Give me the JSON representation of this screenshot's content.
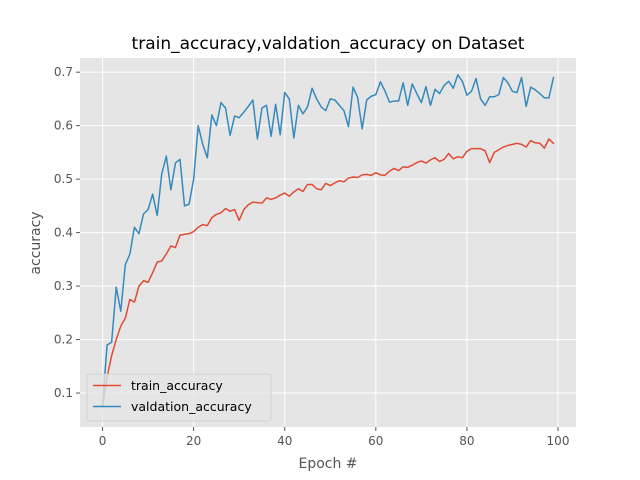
{
  "chart_data": {
    "type": "line",
    "title": "train_accuracy,valdation_accuracy on Dataset",
    "xlabel": "Epoch #",
    "ylabel": "accuracy",
    "xlim": [
      -4.95,
      103.95
    ],
    "ylim": [
      0.0365,
      0.7265
    ],
    "xticks": [
      0,
      20,
      40,
      60,
      80,
      100
    ],
    "yticks": [
      0.1,
      0.2,
      0.3,
      0.4,
      0.5,
      0.6,
      0.7
    ],
    "grid": true,
    "legend": "lower-left",
    "colors": {
      "background": "#e5e5e5",
      "grid": "#ffffff",
      "train": "#e24a33",
      "val": "#348abd"
    },
    "series": [
      {
        "name": "train_accuracy",
        "color": "#e24a33",
        "values": [
          0.075,
          0.13,
          0.17,
          0.2,
          0.225,
          0.24,
          0.275,
          0.27,
          0.3,
          0.31,
          0.307,
          0.325,
          0.345,
          0.347,
          0.36,
          0.375,
          0.372,
          0.395,
          0.397,
          0.398,
          0.402,
          0.41,
          0.415,
          0.413,
          0.428,
          0.434,
          0.437,
          0.445,
          0.44,
          0.443,
          0.423,
          0.443,
          0.452,
          0.457,
          0.456,
          0.455,
          0.465,
          0.462,
          0.465,
          0.47,
          0.474,
          0.468,
          0.476,
          0.482,
          0.477,
          0.49,
          0.49,
          0.482,
          0.48,
          0.492,
          0.488,
          0.493,
          0.497,
          0.495,
          0.502,
          0.504,
          0.503,
          0.508,
          0.509,
          0.507,
          0.512,
          0.508,
          0.507,
          0.515,
          0.52,
          0.516,
          0.523,
          0.522,
          0.526,
          0.531,
          0.534,
          0.53,
          0.536,
          0.54,
          0.533,
          0.537,
          0.548,
          0.538,
          0.542,
          0.54,
          0.552,
          0.557,
          0.557,
          0.557,
          0.553,
          0.531,
          0.55,
          0.555,
          0.56,
          0.563,
          0.565,
          0.567,
          0.565,
          0.56,
          0.572,
          0.568,
          0.567,
          0.558,
          0.575,
          0.567
        ]
      },
      {
        "name": "valdation_accuracy",
        "color": "#348abd",
        "values": [
          0.078,
          0.19,
          0.195,
          0.298,
          0.253,
          0.34,
          0.36,
          0.41,
          0.398,
          0.435,
          0.443,
          0.472,
          0.432,
          0.51,
          0.543,
          0.48,
          0.53,
          0.537,
          0.45,
          0.453,
          0.5,
          0.6,
          0.565,
          0.54,
          0.62,
          0.6,
          0.643,
          0.633,
          0.582,
          0.618,
          0.615,
          0.625,
          0.636,
          0.648,
          0.575,
          0.633,
          0.638,
          0.58,
          0.64,
          0.583,
          0.662,
          0.65,
          0.577,
          0.638,
          0.622,
          0.635,
          0.67,
          0.65,
          0.635,
          0.628,
          0.65,
          0.648,
          0.638,
          0.628,
          0.598,
          0.672,
          0.653,
          0.594,
          0.648,
          0.655,
          0.658,
          0.682,
          0.665,
          0.644,
          0.646,
          0.646,
          0.68,
          0.638,
          0.678,
          0.66,
          0.643,
          0.673,
          0.638,
          0.668,
          0.66,
          0.675,
          0.683,
          0.67,
          0.695,
          0.683,
          0.657,
          0.664,
          0.688,
          0.65,
          0.638,
          0.654,
          0.654,
          0.658,
          0.69,
          0.68,
          0.664,
          0.662,
          0.69,
          0.636,
          0.672,
          0.667,
          0.66,
          0.652,
          0.652,
          0.69
        ]
      }
    ]
  }
}
